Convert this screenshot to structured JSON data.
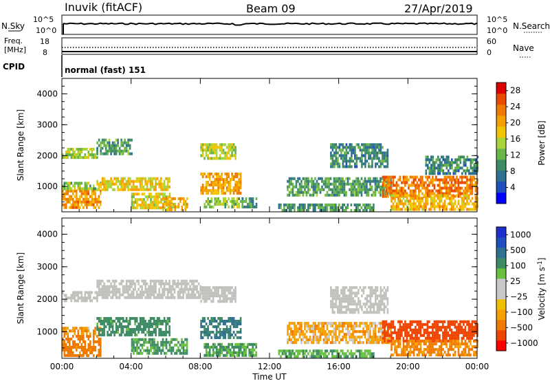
{
  "header": {
    "radar": "Inuvik (fitACF)",
    "beam": "Beam 09",
    "date": "27/Apr/2019"
  },
  "panels": {
    "nsky": {
      "left_label": "N.Sky",
      "left_ticks": [
        "10^5",
        "10^0"
      ],
      "right_ticks": [
        "10^5",
        "10^0"
      ],
      "right_label": "N.Search"
    },
    "freq": {
      "left_label_1": "Freq.",
      "left_label_2": "[MHz]",
      "left_ticks": [
        "18",
        "8"
      ],
      "right_ticks": [
        "60",
        "0"
      ],
      "right_label": "Nave"
    },
    "cpid": {
      "label": "CPID",
      "value": "normal (fast) 151"
    }
  },
  "colors": {
    "power_scale": [
      "#0000ff",
      "#1f4fbd",
      "#2f6f8f",
      "#3e8a64",
      "#69b54a",
      "#a8d43a",
      "#f2c500",
      "#f5a000",
      "#f07a00",
      "#e84a00",
      "#dd0000"
    ],
    "velocity_scale": [
      "#ff0000",
      "#ee4400",
      "#f07a00",
      "#f5a000",
      "#f0c000",
      "#c8c8c8",
      "#c8c8c8",
      "#69c040",
      "#3e8a64",
      "#2f6f8f",
      "#1f4fbd",
      "#1f2fcd"
    ],
    "ground_scatter": "#c0c0bc"
  },
  "chart_data": [
    {
      "type": "heatmap",
      "title": "Power",
      "xlabel": "",
      "ylabel": "Slant Range [km]",
      "x_tick_labels": [
        "00:00",
        "04:00",
        "08:00",
        "12:00",
        "16:00",
        "20:00",
        "00:00"
      ],
      "xlim_hours": [
        0,
        24
      ],
      "y_tick_labels": [
        "1000",
        "2000",
        "3000",
        "4000"
      ],
      "ylim_km": [
        180,
        4500
      ],
      "colorbar": {
        "label": "Power [dB]",
        "ticks": [
          "4",
          "8",
          "12",
          "16",
          "20",
          "24",
          "28"
        ],
        "range": [
          0,
          30
        ]
      },
      "regions": [
        {
          "t0": 0.0,
          "t1": 2.2,
          "r0": 300,
          "r1": 900,
          "value": 22
        },
        {
          "t0": 0.0,
          "t1": 2.2,
          "r0": 900,
          "r1": 1150,
          "value": 14
        },
        {
          "t0": 0.0,
          "t1": 2.0,
          "r0": 1950,
          "r1": 2250,
          "value": 14
        },
        {
          "t0": 2.0,
          "t1": 4.0,
          "r0": 2050,
          "r1": 2550,
          "value": 10
        },
        {
          "t0": 2.0,
          "t1": 6.2,
          "r0": 900,
          "r1": 1300,
          "value": 18
        },
        {
          "t0": 4.0,
          "t1": 6.3,
          "r0": 300,
          "r1": 800,
          "value": 17
        },
        {
          "t0": 5.8,
          "t1": 7.2,
          "r0": 280,
          "r1": 650,
          "value": 20
        },
        {
          "t0": 8.0,
          "t1": 10.0,
          "r0": 1900,
          "r1": 2400,
          "value": 15
        },
        {
          "t0": 8.0,
          "t1": 10.3,
          "r0": 800,
          "r1": 1450,
          "value": 21
        },
        {
          "t0": 8.2,
          "t1": 10.4,
          "r0": 300,
          "r1": 650,
          "value": 13
        },
        {
          "t0": 10.4,
          "t1": 11.2,
          "r0": 300,
          "r1": 650,
          "value": 9
        },
        {
          "t0": 15.5,
          "t1": 18.8,
          "r0": 1600,
          "r1": 2400,
          "value": 8
        },
        {
          "t0": 13.0,
          "t1": 19.0,
          "r0": 700,
          "r1": 1300,
          "value": 10
        },
        {
          "t0": 12.5,
          "t1": 18.0,
          "r0": 250,
          "r1": 450,
          "value": 9
        },
        {
          "t0": 18.5,
          "t1": 24.0,
          "r0": 700,
          "r1": 1350,
          "value": 24
        },
        {
          "t0": 19.0,
          "t1": 24.0,
          "r0": 250,
          "r1": 750,
          "value": 20
        },
        {
          "t0": 21.0,
          "t1": 24.0,
          "r0": 1400,
          "r1": 2000,
          "value": 8
        }
      ]
    },
    {
      "type": "heatmap",
      "title": "Velocity",
      "xlabel": "Time UT",
      "ylabel": "Slant Range [km]",
      "x_tick_labels": [
        "00:00",
        "04:00",
        "08:00",
        "12:00",
        "16:00",
        "20:00",
        "00:00"
      ],
      "xlim_hours": [
        0,
        24
      ],
      "y_tick_labels": [
        "1000",
        "2000",
        "3000",
        "4000"
      ],
      "ylim_km": [
        180,
        4500
      ],
      "colorbar": {
        "label": "Velocity [m s^-1]",
        "ticks": [
          "1000",
          "500",
          "100",
          "25",
          "−25",
          "−100",
          "−500",
          "−1000"
        ]
      },
      "regions": [
        {
          "t0": 0.0,
          "t1": 2.2,
          "r0": 300,
          "r1": 900,
          "value": -150
        },
        {
          "t0": 0.0,
          "t1": 2.2,
          "r0": 900,
          "r1": 1150,
          "value": -80
        },
        {
          "t0": 0.0,
          "t1": 2.0,
          "r0": 1950,
          "r1": 2250,
          "value": 0,
          "ground": true
        },
        {
          "t0": 2.0,
          "t1": 8.0,
          "r0": 2050,
          "r1": 2600,
          "value": 0,
          "ground": true
        },
        {
          "t0": 2.0,
          "t1": 6.2,
          "r0": 900,
          "r1": 1450,
          "value": 150
        },
        {
          "t0": 4.0,
          "t1": 7.2,
          "r0": 300,
          "r1": 800,
          "value": 120
        },
        {
          "t0": 8.0,
          "t1": 10.3,
          "r0": 800,
          "r1": 1450,
          "value": 300
        },
        {
          "t0": 8.0,
          "t1": 10.0,
          "r0": 1900,
          "r1": 2400,
          "value": 0,
          "ground": true
        },
        {
          "t0": 8.2,
          "t1": 11.2,
          "r0": 300,
          "r1": 650,
          "value": 110
        },
        {
          "t0": 15.5,
          "t1": 18.8,
          "r0": 1600,
          "r1": 2400,
          "value": 0,
          "ground": true
        },
        {
          "t0": 13.0,
          "t1": 19.0,
          "r0": 700,
          "r1": 1300,
          "value": -60
        },
        {
          "t0": 12.5,
          "t1": 18.0,
          "r0": 250,
          "r1": 450,
          "value": 80
        },
        {
          "t0": 18.5,
          "t1": 24.0,
          "r0": 700,
          "r1": 1350,
          "value": -400
        },
        {
          "t0": 19.0,
          "t1": 24.0,
          "r0": 250,
          "r1": 750,
          "value": -120
        }
      ]
    }
  ]
}
